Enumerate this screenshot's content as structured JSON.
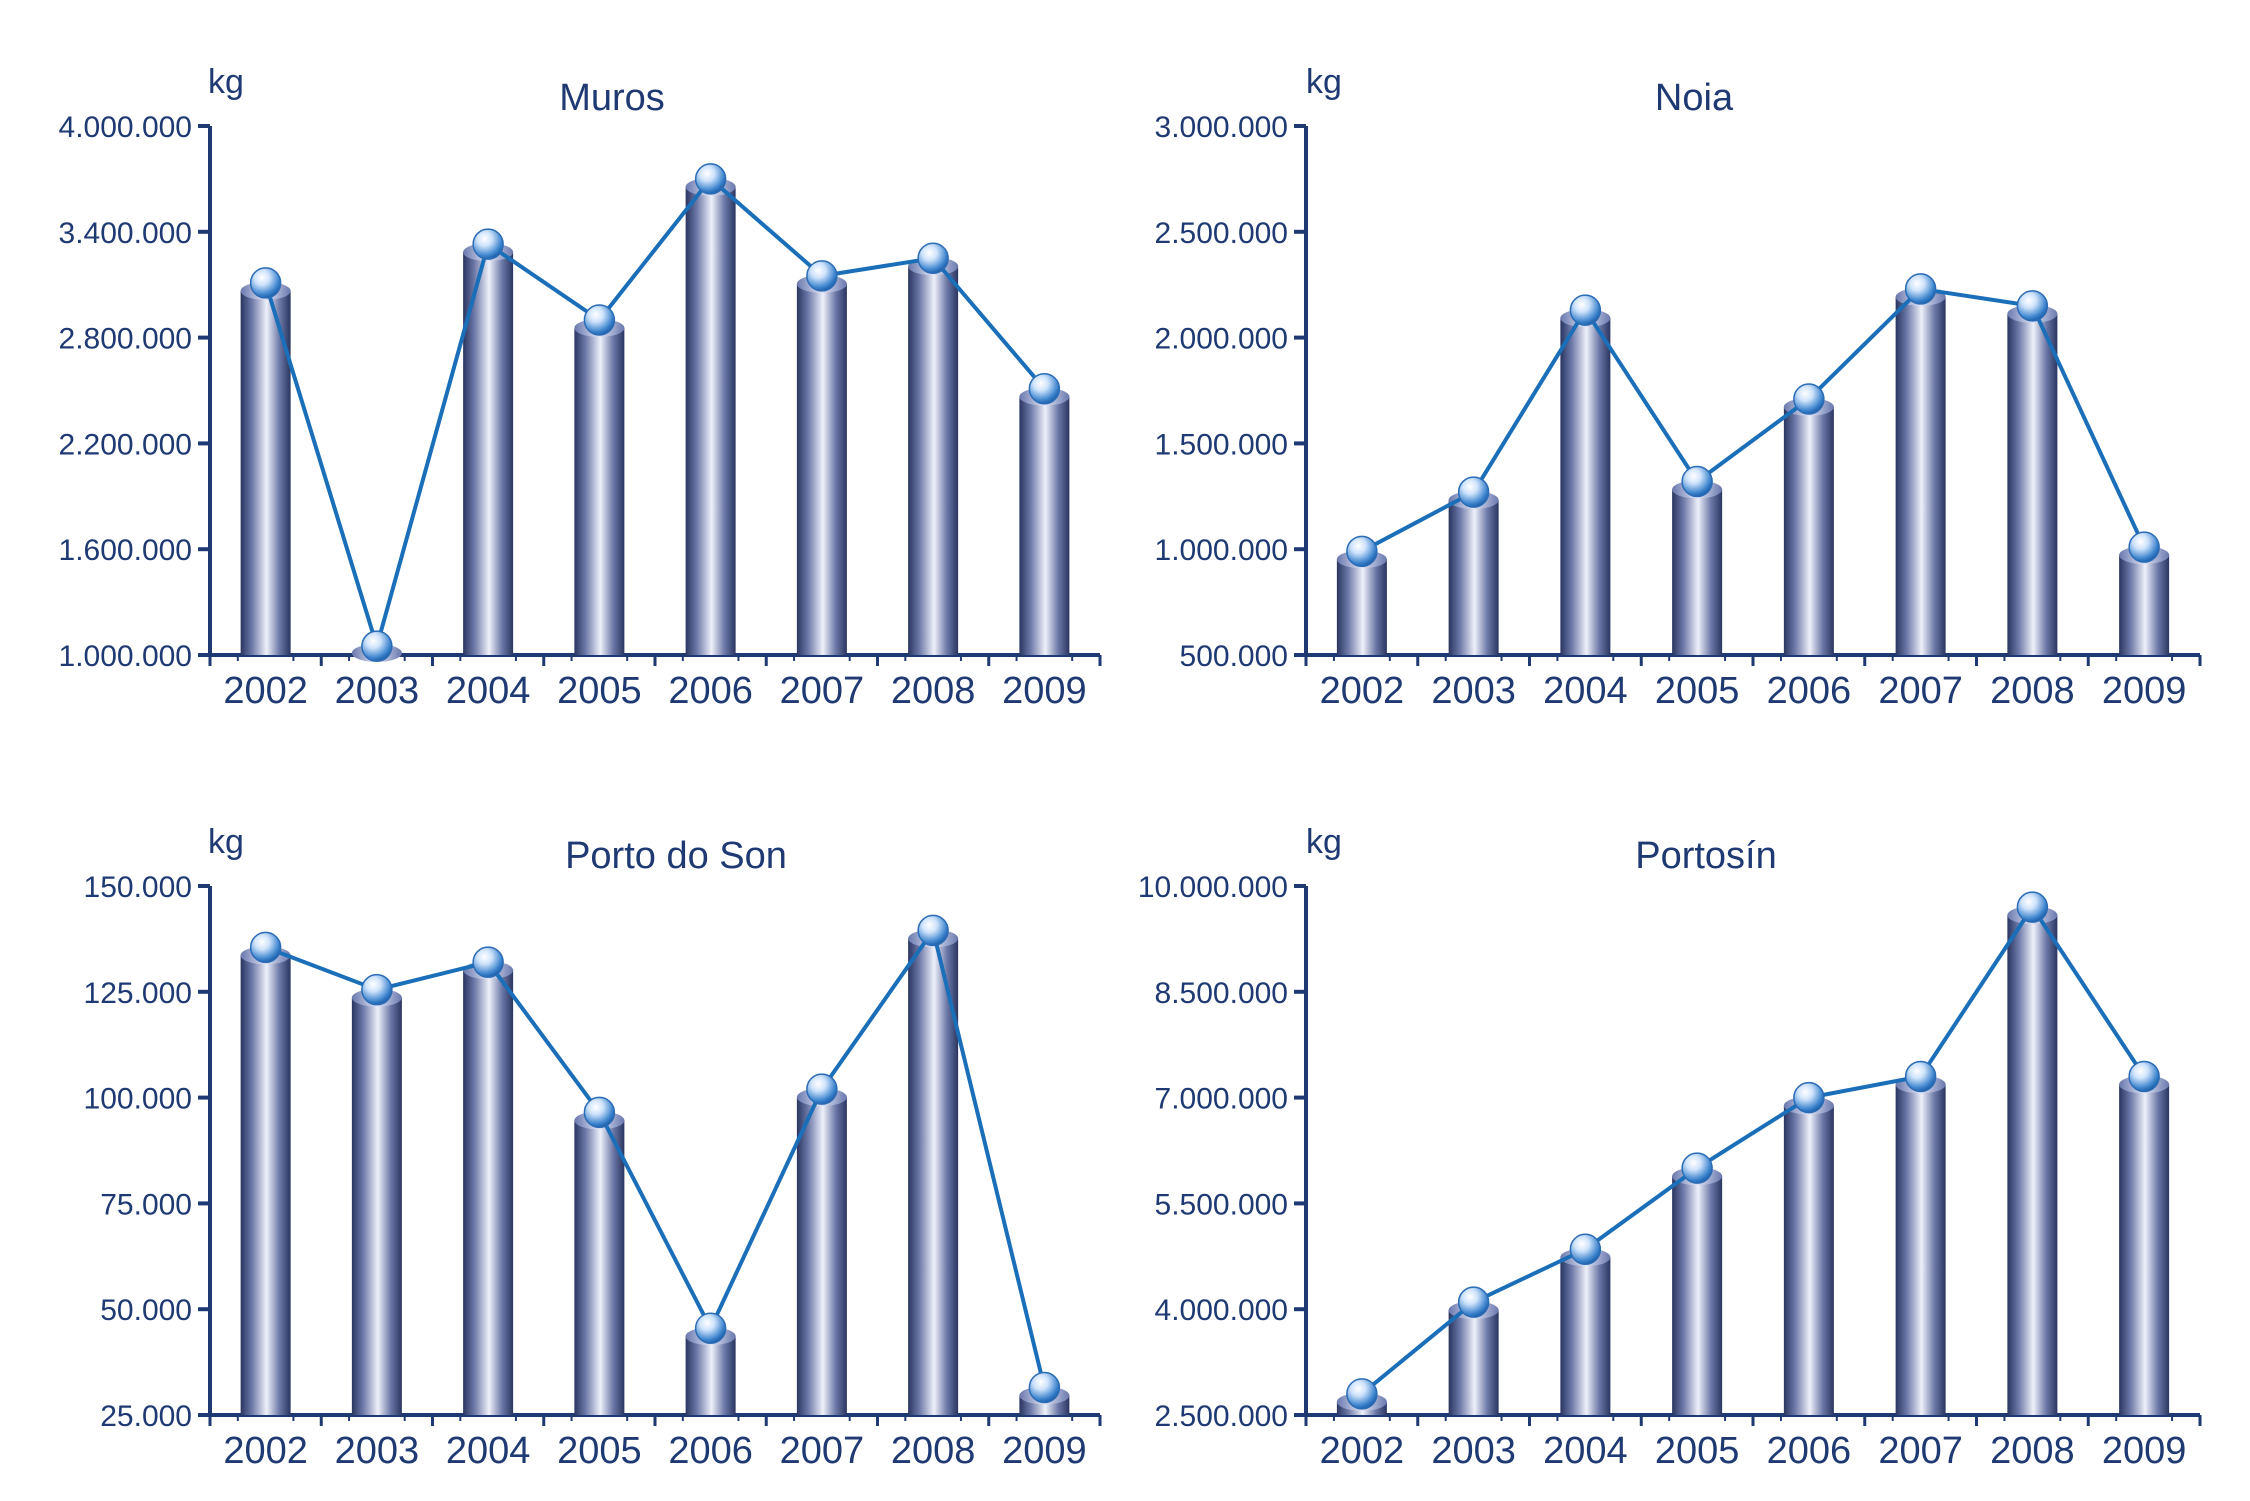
{
  "colors": {
    "axis": "#1f3a73",
    "text": "#1f3a73",
    "line": "#1b6fb8",
    "bar_dark": "#2a3560",
    "bar_light": "#eef0fa",
    "marker_light": "#f4f8ff",
    "marker_dark": "#2b6cb5"
  },
  "chart_data": [
    {
      "type": "bar",
      "title": "Muros",
      "ylabel": "kg",
      "categories": [
        "2002",
        "2003",
        "2004",
        "2005",
        "2006",
        "2007",
        "2008",
        "2009"
      ],
      "values": [
        3110000,
        1050000,
        3330000,
        2900000,
        3700000,
        3150000,
        3250000,
        2510000
      ],
      "ylim": [
        1000000,
        4000000
      ],
      "yticks": [
        1000000,
        1600000,
        2200000,
        2800000,
        3400000,
        4000000
      ],
      "ytick_labels": [
        "1.000.000",
        "1.600.000",
        "2.200.000",
        "2.800.000",
        "3.400.000",
        "4.000.000"
      ]
    },
    {
      "type": "bar",
      "title": "Noia",
      "ylabel": "kg",
      "categories": [
        "2002",
        "2003",
        "2004",
        "2005",
        "2006",
        "2007",
        "2008",
        "2009"
      ],
      "values": [
        990000,
        1270000,
        2130000,
        1320000,
        1710000,
        2230000,
        2150000,
        1010000
      ],
      "ylim": [
        500000,
        3000000
      ],
      "yticks": [
        500000,
        1000000,
        1500000,
        2000000,
        2500000,
        3000000
      ],
      "ytick_labels": [
        "500.000",
        "1.000.000",
        "1.500.000",
        "2.000.000",
        "2.500.000",
        "3.000.000"
      ]
    },
    {
      "type": "bar",
      "title": "Porto do Son",
      "ylabel": "kg",
      "categories": [
        "2002",
        "2003",
        "2004",
        "2005",
        "2006",
        "2007",
        "2008",
        "2009"
      ],
      "values": [
        135500,
        125500,
        132000,
        96500,
        45500,
        102000,
        139500,
        31500
      ],
      "ylim": [
        25000,
        150000
      ],
      "yticks": [
        25000,
        50000,
        75000,
        100000,
        125000,
        150000
      ],
      "ytick_labels": [
        "25.000",
        "50.000",
        "75.000",
        "100.000",
        "125.000",
        "150.000"
      ]
    },
    {
      "type": "bar",
      "title": "Portosín",
      "ylabel": "kg",
      "categories": [
        "2002",
        "2003",
        "2004",
        "2005",
        "2006",
        "2007",
        "2008",
        "2009"
      ],
      "values": [
        2800000,
        4100000,
        4850000,
        6000000,
        7000000,
        7300000,
        9700000,
        7300000
      ],
      "ylim": [
        2500000,
        10000000
      ],
      "yticks": [
        2500000,
        4000000,
        5500000,
        7000000,
        8500000,
        10000000
      ],
      "ytick_labels": [
        "2.500.000",
        "4.000.000",
        "5.500.000",
        "7.000.000",
        "8.500.000",
        "10.000.000"
      ]
    }
  ]
}
